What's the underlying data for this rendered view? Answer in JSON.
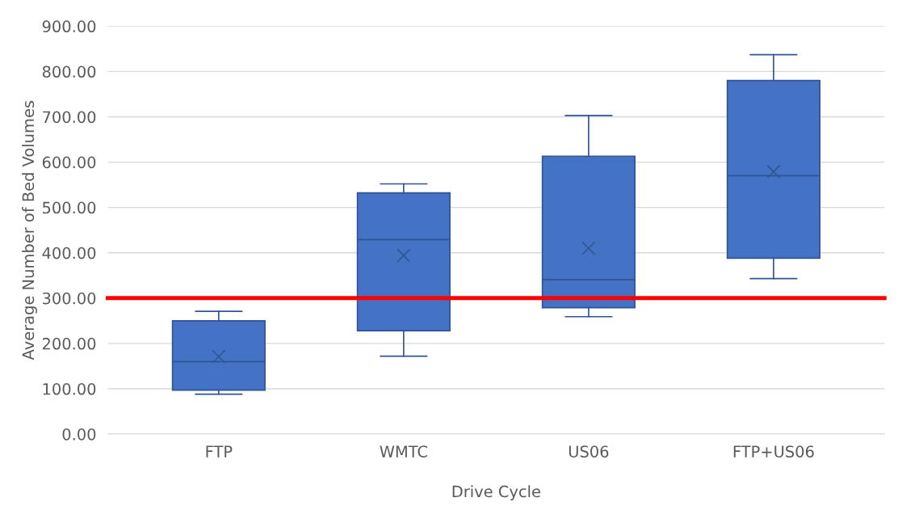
{
  "chart_data": {
    "type": "box",
    "xlabel": "Drive Cycle",
    "ylabel": "Average Number of Bed Volumes",
    "categories": [
      "FTP",
      "WMTC",
      "US06",
      "FTP+US06"
    ],
    "boxes": [
      {
        "low": 88,
        "q1": 97,
        "median": 160,
        "q3": 250,
        "high": 271,
        "mean": 171
      },
      {
        "low": 172,
        "q1": 228,
        "median": 429,
        "q3": 532,
        "high": 552,
        "mean": 394
      },
      {
        "low": 259,
        "q1": 279,
        "median": 341,
        "q3": 613,
        "high": 703,
        "mean": 410
      },
      {
        "low": 343,
        "q1": 388,
        "median": 570,
        "q3": 780,
        "high": 837,
        "mean": 579
      }
    ],
    "color": "#4472c4",
    "ylim": [
      0,
      900
    ],
    "yticks": [
      {
        "value": 0,
        "label": "0.00"
      },
      {
        "value": 100,
        "label": "100.00"
      },
      {
        "value": 200,
        "label": "200.00"
      },
      {
        "value": 300,
        "label": "300.00"
      },
      {
        "value": 400,
        "label": "400.00"
      },
      {
        "value": 500,
        "label": "500.00"
      },
      {
        "value": 600,
        "label": "600.00"
      },
      {
        "value": 700,
        "label": "700.00"
      },
      {
        "value": 800,
        "label": "800.00"
      },
      {
        "value": 900,
        "label": "900.00"
      }
    ],
    "grid": "y",
    "ref_lines": [
      {
        "axis": "y",
        "value": 300,
        "color": "#ff0000"
      }
    ]
  }
}
